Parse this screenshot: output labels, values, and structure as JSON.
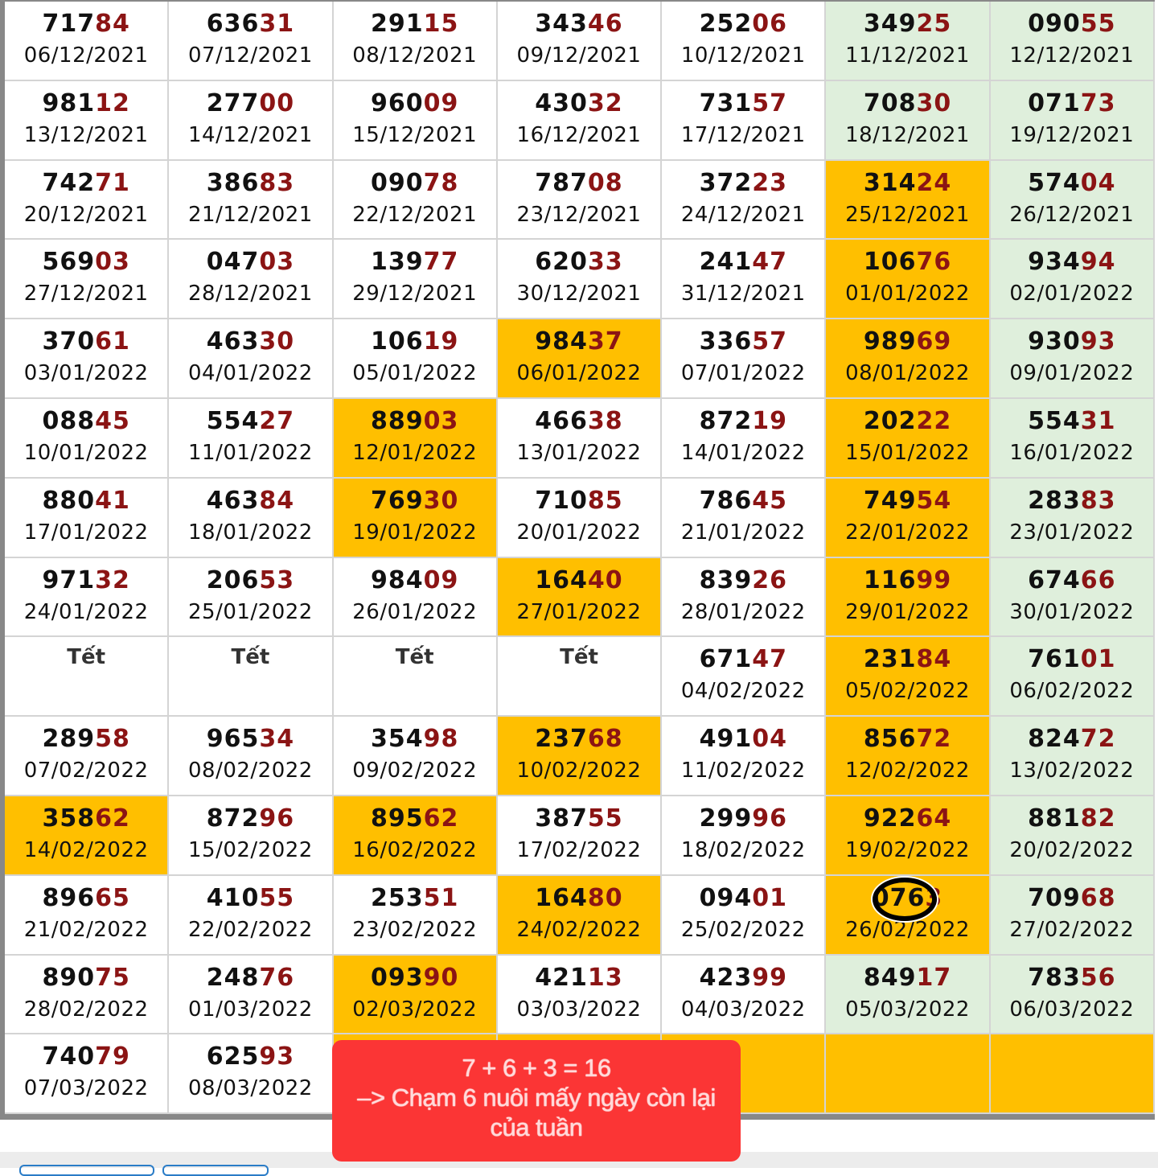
{
  "colors": {
    "green": "#dfefdc",
    "orange": "#ffbf00",
    "tail": "#8b1414",
    "popup": "#fb3535"
  },
  "rows": [
    [
      {
        "n": "71784",
        "d": "06/12/2021"
      },
      {
        "n": "63631",
        "d": "07/12/2021"
      },
      {
        "n": "29115",
        "d": "08/12/2021"
      },
      {
        "n": "34346",
        "d": "09/12/2021"
      },
      {
        "n": "25206",
        "d": "10/12/2021"
      },
      {
        "n": "34925",
        "d": "11/12/2021",
        "bg": "green"
      },
      {
        "n": "09055",
        "d": "12/12/2021",
        "bg": "green"
      }
    ],
    [
      {
        "n": "98112",
        "d": "13/12/2021"
      },
      {
        "n": "27700",
        "d": "14/12/2021"
      },
      {
        "n": "96009",
        "d": "15/12/2021"
      },
      {
        "n": "43032",
        "d": "16/12/2021"
      },
      {
        "n": "73157",
        "d": "17/12/2021"
      },
      {
        "n": "70830",
        "d": "18/12/2021",
        "bg": "green"
      },
      {
        "n": "07173",
        "d": "19/12/2021",
        "bg": "green"
      }
    ],
    [
      {
        "n": "74271",
        "d": "20/12/2021"
      },
      {
        "n": "38683",
        "d": "21/12/2021"
      },
      {
        "n": "09078",
        "d": "22/12/2021"
      },
      {
        "n": "78708",
        "d": "23/12/2021"
      },
      {
        "n": "37223",
        "d": "24/12/2021"
      },
      {
        "n": "31424",
        "d": "25/12/2021",
        "bg": "orange"
      },
      {
        "n": "57404",
        "d": "26/12/2021",
        "bg": "green"
      }
    ],
    [
      {
        "n": "56903",
        "d": "27/12/2021"
      },
      {
        "n": "04703",
        "d": "28/12/2021"
      },
      {
        "n": "13977",
        "d": "29/12/2021"
      },
      {
        "n": "62033",
        "d": "30/12/2021"
      },
      {
        "n": "24147",
        "d": "31/12/2021"
      },
      {
        "n": "10676",
        "d": "01/01/2022",
        "bg": "orange"
      },
      {
        "n": "93494",
        "d": "02/01/2022",
        "bg": "green"
      }
    ],
    [
      {
        "n": "37061",
        "d": "03/01/2022"
      },
      {
        "n": "46330",
        "d": "04/01/2022"
      },
      {
        "n": "10619",
        "d": "05/01/2022"
      },
      {
        "n": "98437",
        "d": "06/01/2022",
        "bg": "orange"
      },
      {
        "n": "33657",
        "d": "07/01/2022"
      },
      {
        "n": "98969",
        "d": "08/01/2022",
        "bg": "orange"
      },
      {
        "n": "93093",
        "d": "09/01/2022",
        "bg": "green"
      }
    ],
    [
      {
        "n": "08845",
        "d": "10/01/2022"
      },
      {
        "n": "55427",
        "d": "11/01/2022"
      },
      {
        "n": "88903",
        "d": "12/01/2022",
        "bg": "orange"
      },
      {
        "n": "46638",
        "d": "13/01/2022"
      },
      {
        "n": "87219",
        "d": "14/01/2022"
      },
      {
        "n": "20222",
        "d": "15/01/2022",
        "bg": "orange"
      },
      {
        "n": "55431",
        "d": "16/01/2022",
        "bg": "green"
      }
    ],
    [
      {
        "n": "88041",
        "d": "17/01/2022"
      },
      {
        "n": "46384",
        "d": "18/01/2022"
      },
      {
        "n": "76930",
        "d": "19/01/2022",
        "bg": "orange"
      },
      {
        "n": "71085",
        "d": "20/01/2022"
      },
      {
        "n": "78645",
        "d": "21/01/2022"
      },
      {
        "n": "74954",
        "d": "22/01/2022",
        "bg": "orange"
      },
      {
        "n": "28383",
        "d": "23/01/2022",
        "bg": "green"
      }
    ],
    [
      {
        "n": "97132",
        "d": "24/01/2022"
      },
      {
        "n": "20653",
        "d": "25/01/2022"
      },
      {
        "n": "98409",
        "d": "26/01/2022"
      },
      {
        "n": "16440",
        "d": "27/01/2022",
        "bg": "orange"
      },
      {
        "n": "83926",
        "d": "28/01/2022"
      },
      {
        "n": "11699",
        "d": "29/01/2022",
        "bg": "orange"
      },
      {
        "n": "67466",
        "d": "30/01/2022",
        "bg": "green"
      }
    ],
    [
      {
        "t": "Tết"
      },
      {
        "t": "Tết"
      },
      {
        "t": "Tết"
      },
      {
        "t": "Tết"
      },
      {
        "n": "67147",
        "d": "04/02/2022"
      },
      {
        "n": "23184",
        "d": "05/02/2022",
        "bg": "orange"
      },
      {
        "n": "76101",
        "d": "06/02/2022",
        "bg": "green"
      }
    ],
    [
      {
        "n": "28958",
        "d": "07/02/2022"
      },
      {
        "n": "96534",
        "d": "08/02/2022"
      },
      {
        "n": "35498",
        "d": "09/02/2022"
      },
      {
        "n": "23768",
        "d": "10/02/2022",
        "bg": "orange"
      },
      {
        "n": "49104",
        "d": "11/02/2022"
      },
      {
        "n": "85672",
        "d": "12/02/2022",
        "bg": "orange"
      },
      {
        "n": "82472",
        "d": "13/02/2022",
        "bg": "green"
      }
    ],
    [
      {
        "n": "35862",
        "d": "14/02/2022",
        "bg": "orange"
      },
      {
        "n": "87296",
        "d": "15/02/2022"
      },
      {
        "n": "89562",
        "d": "16/02/2022",
        "bg": "orange"
      },
      {
        "n": "38755",
        "d": "17/02/2022"
      },
      {
        "n": "29996",
        "d": "18/02/2022"
      },
      {
        "n": "92264",
        "d": "19/02/2022",
        "bg": "orange"
      },
      {
        "n": "88182",
        "d": "20/02/2022",
        "bg": "green"
      }
    ],
    [
      {
        "n": "89665",
        "d": "21/02/2022"
      },
      {
        "n": "41055",
        "d": "22/02/2022"
      },
      {
        "n": "25351",
        "d": "23/02/2022"
      },
      {
        "n": "16480",
        "d": "24/02/2022",
        "bg": "orange"
      },
      {
        "n": "09401",
        "d": "25/02/2022"
      },
      {
        "n": "0763",
        "d": "26/02/2022",
        "bg": "orange",
        "circled": true
      },
      {
        "n": "70968",
        "d": "27/02/2022",
        "bg": "green"
      }
    ],
    [
      {
        "n": "89075",
        "d": "28/02/2022"
      },
      {
        "n": "24876",
        "d": "01/03/2022"
      },
      {
        "n": "09390",
        "d": "02/03/2022",
        "bg": "orange"
      },
      {
        "n": "42113",
        "d": "03/03/2022"
      },
      {
        "n": "42399",
        "d": "04/03/2022"
      },
      {
        "n": "84917",
        "d": "05/03/2022",
        "bg": "green"
      },
      {
        "n": "78356",
        "d": "06/03/2022",
        "bg": "green"
      }
    ],
    [
      {
        "n": "74079",
        "d": "07/03/2022"
      },
      {
        "n": "62593",
        "d": "08/03/2022"
      },
      {
        "bg": "orange"
      },
      {
        "bg": "orange"
      },
      {
        "bg": "orange"
      },
      {
        "bg": "orange"
      },
      {
        "bg": "orange"
      }
    ]
  ],
  "popup": {
    "line1": "7 + 6 + 3 = 16",
    "line2": "–> Chạm 6 nuôi mấy ngày còn lại",
    "line3": "của tuần"
  }
}
